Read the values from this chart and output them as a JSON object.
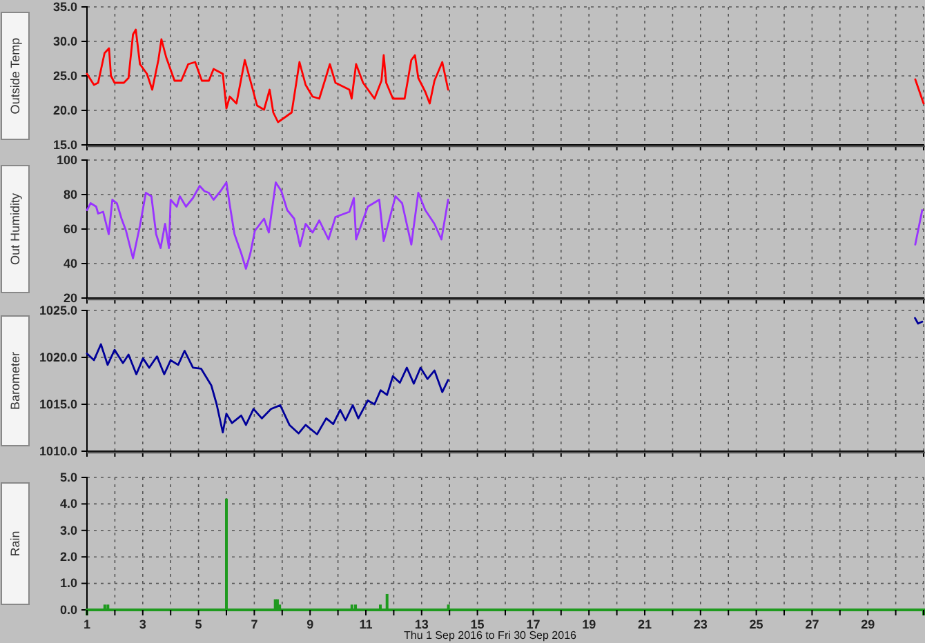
{
  "chart_data": [
    {
      "type": "line",
      "ylabel": "Outside Temp",
      "color": "#ff0000",
      "grid": true,
      "marker": "none",
      "line_style": "solid",
      "tick_labels": "y",
      "xlim": [
        1,
        31
      ],
      "xticks": [
        {
          "value": 1,
          "label": null
        },
        {
          "value": 2,
          "label": null
        },
        {
          "value": 3,
          "label": null
        },
        {
          "value": 4,
          "label": null
        },
        {
          "value": 5,
          "label": null
        },
        {
          "value": 6,
          "label": null
        },
        {
          "value": 7,
          "label": null
        },
        {
          "value": 8,
          "label": null
        },
        {
          "value": 9,
          "label": null
        },
        {
          "value": 10,
          "label": null
        },
        {
          "value": 11,
          "label": null
        },
        {
          "value": 12,
          "label": null
        },
        {
          "value": 13,
          "label": null
        },
        {
          "value": 14,
          "label": null
        },
        {
          "value": 15,
          "label": null
        },
        {
          "value": 16,
          "label": null
        },
        {
          "value": 17,
          "label": null
        },
        {
          "value": 18,
          "label": null
        },
        {
          "value": 19,
          "label": null
        },
        {
          "value": 20,
          "label": null
        },
        {
          "value": 21,
          "label": null
        },
        {
          "value": 22,
          "label": null
        },
        {
          "value": 23,
          "label": null
        },
        {
          "value": 24,
          "label": null
        },
        {
          "value": 25,
          "label": null
        },
        {
          "value": 26,
          "label": null
        },
        {
          "value": 27,
          "label": null
        },
        {
          "value": 28,
          "label": null
        },
        {
          "value": 29,
          "label": null
        },
        {
          "value": 30,
          "label": null
        },
        {
          "value": 31,
          "label": null
        }
      ],
      "ylim": [
        15,
        35
      ],
      "yticks": [
        {
          "value": 15,
          "label": "15.0"
        },
        {
          "value": 20,
          "label": "20.0"
        },
        {
          "value": 25,
          "label": "25.0"
        },
        {
          "value": 30,
          "label": "30.0"
        },
        {
          "value": 35,
          "label": "35.0"
        }
      ],
      "x": [
        1.0,
        1.25,
        1.4,
        1.63,
        1.79,
        1.86,
        1.99,
        2.32,
        2.49,
        2.65,
        2.75,
        2.9,
        3.15,
        3.34,
        3.56,
        3.67,
        3.84,
        4.14,
        4.38,
        4.63,
        4.88,
        5.12,
        5.37,
        5.54,
        5.87,
        6.0,
        6.12,
        6.36,
        6.66,
        6.86,
        7.1,
        7.35,
        7.55,
        7.68,
        7.85,
        8.1,
        8.34,
        8.62,
        8.84,
        9.09,
        9.33,
        9.71,
        9.91,
        10.41,
        10.49,
        10.65,
        10.9,
        11.31,
        11.56,
        11.64,
        11.73,
        11.97,
        12.39,
        12.63,
        12.76,
        12.88,
        13.13,
        13.29,
        13.46,
        13.74,
        13.95,
        22,
        30.7,
        31.0
      ],
      "values": [
        25.3,
        23.7,
        24.0,
        28.3,
        29.0,
        25.0,
        24.0,
        24.0,
        24.7,
        31.0,
        31.7,
        26.7,
        25.3,
        23.0,
        27.3,
        30.3,
        27.7,
        24.3,
        24.3,
        26.7,
        27.0,
        24.3,
        24.3,
        26.0,
        25.3,
        20.3,
        22.0,
        21.0,
        27.3,
        24.3,
        20.7,
        20.1,
        23.0,
        19.7,
        18.3,
        19.0,
        19.7,
        27.0,
        23.7,
        22.0,
        21.7,
        26.7,
        24.0,
        23.0,
        21.7,
        26.7,
        24.0,
        21.7,
        24.3,
        28.0,
        24.0,
        21.7,
        21.7,
        27.3,
        28.0,
        24.7,
        22.7,
        21.0,
        24.3,
        27.0,
        23.0,
        null,
        24.5,
        21.0
      ]
    },
    {
      "type": "line",
      "ylabel": "Out Humidity",
      "color": "#9933ff",
      "grid": true,
      "marker": "none",
      "line_style": "solid",
      "tick_labels": "y",
      "xlim": [
        1,
        31
      ],
      "xticks": [
        {
          "value": 1,
          "label": null
        },
        {
          "value": 2,
          "label": null
        },
        {
          "value": 3,
          "label": null
        },
        {
          "value": 4,
          "label": null
        },
        {
          "value": 5,
          "label": null
        },
        {
          "value": 6,
          "label": null
        },
        {
          "value": 7,
          "label": null
        },
        {
          "value": 8,
          "label": null
        },
        {
          "value": 9,
          "label": null
        },
        {
          "value": 10,
          "label": null
        },
        {
          "value": 11,
          "label": null
        },
        {
          "value": 12,
          "label": null
        },
        {
          "value": 13,
          "label": null
        },
        {
          "value": 14,
          "label": null
        },
        {
          "value": 15,
          "label": null
        },
        {
          "value": 16,
          "label": null
        },
        {
          "value": 17,
          "label": null
        },
        {
          "value": 18,
          "label": null
        },
        {
          "value": 19,
          "label": null
        },
        {
          "value": 20,
          "label": null
        },
        {
          "value": 21,
          "label": null
        },
        {
          "value": 22,
          "label": null
        },
        {
          "value": 23,
          "label": null
        },
        {
          "value": 24,
          "label": null
        },
        {
          "value": 25,
          "label": null
        },
        {
          "value": 26,
          "label": null
        },
        {
          "value": 27,
          "label": null
        },
        {
          "value": 28,
          "label": null
        },
        {
          "value": 29,
          "label": null
        },
        {
          "value": 30,
          "label": null
        },
        {
          "value": 31,
          "label": null
        }
      ],
      "ylim": [
        20,
        100
      ],
      "yticks": [
        20,
        40,
        60,
        80,
        100
      ],
      "x": [
        1.0,
        1.13,
        1.33,
        1.4,
        1.58,
        1.78,
        1.91,
        2.07,
        2.24,
        2.4,
        2.65,
        2.9,
        3.11,
        3.31,
        3.48,
        3.64,
        3.8,
        3.94,
        4.0,
        4.22,
        4.33,
        4.55,
        4.8,
        5.04,
        5.21,
        5.37,
        5.54,
        5.79,
        6.0,
        6.12,
        6.29,
        6.53,
        6.7,
        6.86,
        7.02,
        7.35,
        7.52,
        7.77,
        7.97,
        8.18,
        8.43,
        8.64,
        8.84,
        9.09,
        9.33,
        9.66,
        9.91,
        10.41,
        10.57,
        10.65,
        11.07,
        11.48,
        11.64,
        12.06,
        12.3,
        12.63,
        12.88,
        13.13,
        13.46,
        13.71,
        13.95,
        22,
        30.7,
        30.95
      ],
      "values": [
        71,
        75,
        73,
        69,
        70,
        57,
        77,
        75,
        66,
        59,
        43,
        62,
        81,
        79,
        57,
        49,
        63,
        49,
        77,
        73,
        79,
        73,
        78,
        85,
        82,
        81,
        77,
        82,
        87,
        74,
        57,
        46,
        37,
        46,
        59,
        66,
        58,
        87,
        82,
        71,
        66,
        50,
        63,
        58,
        65,
        54,
        67,
        70,
        78,
        54,
        73,
        77,
        53,
        79,
        75,
        51,
        81,
        71,
        63,
        54,
        77,
        null,
        51,
        71
      ]
    },
    {
      "type": "line",
      "ylabel": "Barometer",
      "color": "#000099",
      "grid": true,
      "marker": "none",
      "line_style": "solid",
      "tick_labels": "y",
      "xlim": [
        1,
        31
      ],
      "xticks": [
        {
          "value": 1,
          "label": null
        },
        {
          "value": 2,
          "label": null
        },
        {
          "value": 3,
          "label": null
        },
        {
          "value": 4,
          "label": null
        },
        {
          "value": 5,
          "label": null
        },
        {
          "value": 6,
          "label": null
        },
        {
          "value": 7,
          "label": null
        },
        {
          "value": 8,
          "label": null
        },
        {
          "value": 9,
          "label": null
        },
        {
          "value": 10,
          "label": null
        },
        {
          "value": 11,
          "label": null
        },
        {
          "value": 12,
          "label": null
        },
        {
          "value": 13,
          "label": null
        },
        {
          "value": 14,
          "label": null
        },
        {
          "value": 15,
          "label": null
        },
        {
          "value": 16,
          "label": null
        },
        {
          "value": 17,
          "label": null
        },
        {
          "value": 18,
          "label": null
        },
        {
          "value": 19,
          "label": null
        },
        {
          "value": 20,
          "label": null
        },
        {
          "value": 21,
          "label": null
        },
        {
          "value": 22,
          "label": null
        },
        {
          "value": 23,
          "label": null
        },
        {
          "value": 24,
          "label": null
        },
        {
          "value": 25,
          "label": null
        },
        {
          "value": 26,
          "label": null
        },
        {
          "value": 27,
          "label": null
        },
        {
          "value": 28,
          "label": null
        },
        {
          "value": 29,
          "label": null
        },
        {
          "value": 30,
          "label": null
        },
        {
          "value": 31,
          "label": null
        }
      ],
      "ylim": [
        1010,
        1025
      ],
      "yticks": [
        {
          "value": 1010,
          "label": "1010.0"
        },
        {
          "value": 1015,
          "label": "1015.0"
        },
        {
          "value": 1020,
          "label": "1020.0"
        },
        {
          "value": 1025,
          "label": "1025.0"
        }
      ],
      "x": [
        1.0,
        1.25,
        1.5,
        1.74,
        1.99,
        2.29,
        2.49,
        2.77,
        3.01,
        3.23,
        3.51,
        3.77,
        4.0,
        4.27,
        4.5,
        4.8,
        5.09,
        5.46,
        5.65,
        5.87,
        6.0,
        6.2,
        6.53,
        6.7,
        6.97,
        7.27,
        7.6,
        7.93,
        8.26,
        8.59,
        8.84,
        9.25,
        9.58,
        9.83,
        10.08,
        10.27,
        10.53,
        10.73,
        11.07,
        11.31,
        11.53,
        11.76,
        11.97,
        12.22,
        12.47,
        12.72,
        12.96,
        13.21,
        13.46,
        13.74,
        13.95,
        22,
        30.69,
        30.8,
        30.95
      ],
      "values": [
        1020.4,
        1019.7,
        1021.4,
        1019.2,
        1020.8,
        1019.4,
        1020.3,
        1018.2,
        1019.9,
        1018.9,
        1020.1,
        1018.2,
        1019.7,
        1019.2,
        1020.7,
        1018.9,
        1018.8,
        1017.0,
        1015.0,
        1012.0,
        1014.0,
        1013.0,
        1013.8,
        1012.8,
        1014.5,
        1013.5,
        1014.5,
        1014.9,
        1012.8,
        1011.9,
        1012.8,
        1011.8,
        1013.5,
        1012.9,
        1014.4,
        1013.3,
        1014.9,
        1013.5,
        1015.4,
        1015.0,
        1016.5,
        1016.0,
        1018.0,
        1017.3,
        1018.9,
        1017.2,
        1018.9,
        1017.7,
        1018.6,
        1016.3,
        1017.6,
        null,
        1024.2,
        1023.6,
        1023.8
      ]
    },
    {
      "type": "bar",
      "ylabel": "Rain",
      "xlabel": "Thu 1 Sep 2016  to  Fri 30 Sep 2016",
      "color": "#1f9a1f",
      "grid": true,
      "xlim": [
        1,
        31
      ],
      "xticks": [
        1,
        {
          "value": 2,
          "label": null
        },
        3,
        {
          "value": 4,
          "label": null
        },
        5,
        {
          "value": 6,
          "label": null
        },
        7,
        {
          "value": 8,
          "label": null
        },
        9,
        {
          "value": 10,
          "label": null
        },
        11,
        {
          "value": 12,
          "label": null
        },
        13,
        {
          "value": 14,
          "label": null
        },
        15,
        {
          "value": 16,
          "label": null
        },
        17,
        {
          "value": 18,
          "label": null
        },
        19,
        {
          "value": 20,
          "label": null
        },
        21,
        {
          "value": 22,
          "label": null
        },
        23,
        {
          "value": 24,
          "label": null
        },
        25,
        {
          "value": 26,
          "label": null
        },
        27,
        {
          "value": 28,
          "label": null
        },
        29,
        {
          "value": 30,
          "label": null
        },
        {
          "value": 31,
          "label": null
        }
      ],
      "ylim": [
        0,
        5
      ],
      "yticks": [
        {
          "value": 0,
          "label": "0.0"
        },
        {
          "value": 1,
          "label": "1.0"
        },
        {
          "value": 2,
          "label": "2.0"
        },
        {
          "value": 3,
          "label": "3.0"
        },
        {
          "value": 4,
          "label": "4.0"
        },
        {
          "value": 5,
          "label": "5.0"
        }
      ],
      "x": [
        1.64,
        1.75,
        6.0,
        7.75,
        7.83,
        7.91,
        10.5,
        10.63,
        11.52,
        11.76,
        13.96
      ],
      "values": [
        0.2,
        0.2,
        4.2,
        0.4,
        0.4,
        0.2,
        0.2,
        0.2,
        0.2,
        0.6,
        0.2
      ]
    }
  ]
}
